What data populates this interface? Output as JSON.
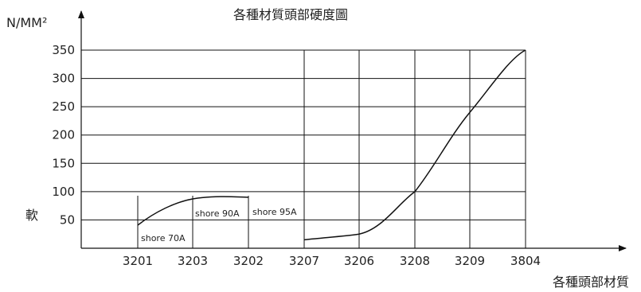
{
  "chart_data": {
    "type": "line",
    "title": "各種材質頭部硬度圖",
    "ylabel": "N/MM²",
    "xlabel": "各種頭部材質",
    "soft_label": "軟",
    "ylim": [
      0,
      350
    ],
    "y_ticks": [
      50,
      100,
      150,
      200,
      250,
      300,
      350
    ],
    "categories": [
      "3201",
      "3203",
      "3202",
      "3207",
      "3206",
      "3208",
      "3209",
      "3804"
    ],
    "grid": "horizontal lines from 3207 to 3804, vertical lines at 3207–3804",
    "series": [
      {
        "segment": "soft (shore scale)",
        "points": [
          {
            "x": "3201",
            "label": "shore 70A"
          },
          {
            "x": "3203",
            "label": "shore 90A"
          },
          {
            "x": "3202",
            "label": "shore 95A"
          }
        ]
      },
      {
        "segment": "hard (N/MM²)",
        "points": [
          {
            "x": "3207",
            "y": 15
          },
          {
            "x": "3206",
            "y": 25
          },
          {
            "x": "3208",
            "y": 100
          },
          {
            "x": "3209",
            "y": 240
          },
          {
            "x": "3804",
            "y": 350
          }
        ]
      }
    ]
  }
}
